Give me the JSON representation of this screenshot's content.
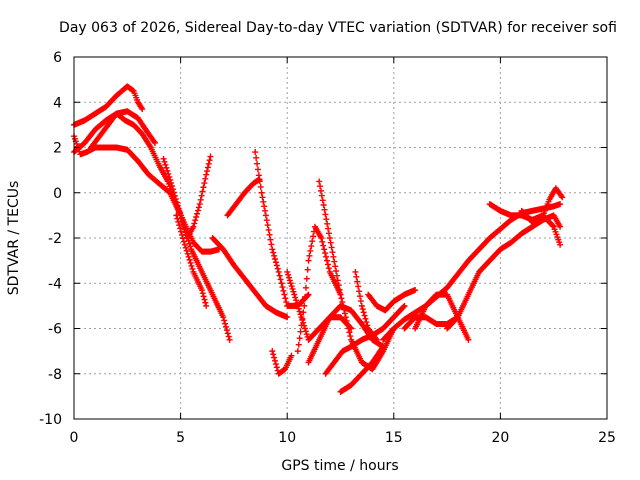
{
  "chart_data": {
    "type": "scatter",
    "title": "Day 063 of 2026, Sidereal Day-to-day VTEC variation (SDTVAR) for receiver sofi",
    "xlabel": "GPS time / hours",
    "ylabel": "SDTVAR / TECUs",
    "xlim": [
      0,
      25
    ],
    "ylim": [
      -10,
      6
    ],
    "xticks": [
      0,
      5,
      10,
      15,
      20,
      25
    ],
    "yticks": [
      -10,
      -8,
      -6,
      -4,
      -2,
      0,
      2,
      4,
      6
    ],
    "grid": true,
    "marker": "+",
    "color": "#ff0000",
    "series": [
      {
        "name": "trace-1",
        "x": [
          0.0,
          0.5,
          1.0,
          1.5,
          2.0,
          2.5,
          2.8,
          3.0,
          3.2
        ],
        "y": [
          3.0,
          3.2,
          3.5,
          3.8,
          4.3,
          4.7,
          4.5,
          4.0,
          3.7
        ]
      },
      {
        "name": "trace-2",
        "x": [
          0.0,
          0.5,
          1.0,
          1.5,
          2.0,
          2.5,
          3.0,
          3.5,
          3.8
        ],
        "y": [
          1.8,
          2.2,
          2.8,
          3.2,
          3.5,
          3.6,
          3.3,
          2.6,
          2.2
        ]
      },
      {
        "name": "trace-3",
        "x": [
          0.0,
          0.3,
          0.6,
          1.0,
          1.5,
          2.0,
          2.5,
          3.0,
          3.5,
          4.0,
          4.5,
          5.0,
          5.3
        ],
        "y": [
          2.5,
          1.7,
          1.8,
          2.0,
          2.0,
          2.0,
          1.9,
          1.4,
          0.8,
          0.4,
          0.0,
          -1.0,
          -2.0
        ]
      },
      {
        "name": "trace-4",
        "x": [
          0.8,
          1.2,
          1.6,
          2.0,
          2.4,
          2.8,
          3.2,
          3.6,
          4.0,
          4.4,
          4.8,
          5.2,
          5.6,
          6.0,
          6.4,
          6.8
        ],
        "y": [
          2.0,
          2.5,
          3.0,
          3.5,
          3.2,
          3.0,
          2.6,
          2.0,
          1.2,
          0.5,
          -0.5,
          -1.4,
          -2.2,
          -2.6,
          -2.6,
          -2.5
        ]
      },
      {
        "name": "trace-5",
        "x": [
          4.2,
          4.6,
          5.0,
          5.5,
          6.0,
          6.5,
          7.0,
          7.3
        ],
        "y": [
          1.5,
          0.3,
          -1.0,
          -2.5,
          -3.5,
          -4.5,
          -5.5,
          -6.5
        ]
      },
      {
        "name": "trace-6",
        "x": [
          4.8,
          5.2,
          5.6,
          6.0,
          6.2
        ],
        "y": [
          -1.0,
          -2.3,
          -3.5,
          -4.3,
          -5.0
        ]
      },
      {
        "name": "trace-7",
        "x": [
          5.3,
          5.6,
          5.9,
          6.2,
          6.4
        ],
        "y": [
          -2.0,
          -1.5,
          -0.5,
          0.8,
          1.6
        ]
      },
      {
        "name": "trace-8",
        "x": [
          6.5,
          7.0,
          7.5,
          8.0,
          8.5,
          9.0,
          9.5,
          10.0
        ],
        "y": [
          -2.0,
          -2.5,
          -3.2,
          -3.8,
          -4.4,
          -5.0,
          -5.3,
          -5.5
        ]
      },
      {
        "name": "trace-9",
        "x": [
          7.2,
          7.6,
          8.0,
          8.4,
          8.7
        ],
        "y": [
          -1.0,
          -0.5,
          0.0,
          0.4,
          0.6
        ]
      },
      {
        "name": "trace-10",
        "x": [
          8.5,
          8.8,
          9.0,
          9.3,
          9.6,
          10.0,
          10.5,
          11.0
        ],
        "y": [
          1.8,
          0.0,
          -1.0,
          -2.5,
          -3.5,
          -5.0,
          -5.0,
          -4.5
        ]
      },
      {
        "name": "trace-11",
        "x": [
          9.3,
          9.6,
          9.9,
          10.2
        ],
        "y": [
          -7.0,
          -8.0,
          -7.8,
          -7.2
        ]
      },
      {
        "name": "trace-12",
        "x": [
          10.0,
          10.5,
          11.0,
          11.5,
          12.0,
          12.5,
          13.0
        ],
        "y": [
          -3.5,
          -5.0,
          -6.5,
          -6.0,
          -5.5,
          -5.5,
          -6.0
        ]
      },
      {
        "name": "trace-13",
        "x": [
          10.5,
          10.8,
          11.0,
          11.3,
          11.6,
          12.0,
          12.5
        ],
        "y": [
          -7.0,
          -5.0,
          -3.0,
          -1.5,
          -2.0,
          -3.5,
          -4.5
        ]
      },
      {
        "name": "trace-14",
        "x": [
          11.0,
          11.5,
          12.0,
          12.5,
          13.0,
          13.5,
          14.0,
          14.5
        ],
        "y": [
          -7.5,
          -6.5,
          -5.5,
          -5.0,
          -5.2,
          -5.8,
          -6.5,
          -6.8
        ]
      },
      {
        "name": "trace-15",
        "x": [
          11.5,
          12.0,
          12.5,
          13.0,
          13.5,
          14.0,
          14.5,
          15.0
        ],
        "y": [
          0.5,
          -2.0,
          -4.5,
          -6.5,
          -7.5,
          -7.8,
          -7.0,
          -6.0
        ]
      },
      {
        "name": "trace-16",
        "x": [
          11.8,
          12.2,
          12.6,
          13.0,
          13.5,
          14.0,
          14.5,
          15.0,
          15.5
        ],
        "y": [
          -8.0,
          -7.5,
          -7.0,
          -6.8,
          -6.5,
          -6.3,
          -6.0,
          -5.5,
          -5.0
        ]
      },
      {
        "name": "trace-17",
        "x": [
          12.5,
          13.0,
          13.5,
          14.0,
          14.5
        ],
        "y": [
          -8.8,
          -8.5,
          -8.0,
          -7.5,
          -6.8
        ]
      },
      {
        "name": "trace-18",
        "x": [
          13.2,
          13.5,
          13.8,
          14.2
        ],
        "y": [
          -3.5,
          -5.0,
          -6.0,
          -6.5
        ]
      },
      {
        "name": "trace-19",
        "x": [
          13.8,
          14.2,
          14.6,
          15.0,
          15.5,
          16.0
        ],
        "y": [
          -4.5,
          -5.0,
          -5.2,
          -4.8,
          -4.5,
          -4.3
        ]
      },
      {
        "name": "trace-20",
        "x": [
          14.5,
          15.0,
          15.5,
          16.0,
          16.5,
          17.0,
          17.5,
          18.0,
          18.5,
          19.0,
          19.5,
          20.0,
          20.5,
          21.0,
          21.5,
          22.0,
          22.5,
          22.8
        ],
        "y": [
          -6.5,
          -6.0,
          -5.6,
          -5.3,
          -5.0,
          -4.6,
          -4.2,
          -3.6,
          -3.0,
          -2.5,
          -2.0,
          -1.6,
          -1.2,
          -0.9,
          -0.8,
          -0.7,
          -0.6,
          -0.5
        ]
      },
      {
        "name": "trace-21",
        "x": [
          15.5,
          16.0,
          16.5,
          17.0,
          17.5,
          18.0
        ],
        "y": [
          -6.0,
          -5.5,
          -5.5,
          -5.8,
          -5.8,
          -5.5
        ]
      },
      {
        "name": "trace-22",
        "x": [
          16.0,
          16.5,
          17.0,
          17.5,
          18.0,
          18.5
        ],
        "y": [
          -6.0,
          -5.0,
          -4.5,
          -4.5,
          -5.5,
          -6.5
        ]
      },
      {
        "name": "trace-23",
        "x": [
          17.5,
          18.0,
          18.5,
          19.0,
          19.5,
          20.0,
          20.5,
          21.0,
          21.5,
          22.0,
          22.5,
          22.8
        ],
        "y": [
          -6.0,
          -5.5,
          -4.5,
          -3.5,
          -3.0,
          -2.5,
          -2.2,
          -1.8,
          -1.5,
          -1.2,
          -1.0,
          -1.5
        ]
      },
      {
        "name": "trace-24",
        "x": [
          19.5,
          20.0,
          20.5,
          21.0,
          21.5,
          22.0,
          22.5,
          22.8
        ],
        "y": [
          -0.5,
          -0.8,
          -1.0,
          -1.0,
          -1.2,
          -1.0,
          -1.5,
          -2.3
        ]
      },
      {
        "name": "trace-25",
        "x": [
          21.0,
          21.5,
          22.0,
          22.3,
          22.6,
          22.9
        ],
        "y": [
          -0.8,
          -1.3,
          -1.0,
          -0.3,
          0.2,
          -0.2
        ]
      }
    ]
  }
}
